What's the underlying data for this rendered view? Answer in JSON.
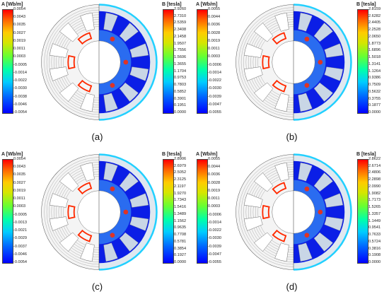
{
  "panels": [
    {
      "caption": "(a)",
      "a_title": "A [Wb/m]",
      "b_title": "B [tesla]",
      "a_ticks": [
        "0.0054",
        "0.0043",
        "0.0035",
        "0.0027",
        "0.0019",
        "0.0011",
        "0.0003",
        "-0.0005",
        "-0.0014",
        "-0.0022",
        "-0.0030",
        "-0.0038",
        "-0.0046",
        "-0.0054"
      ],
      "b_ticks": [
        "2.9260",
        "2.7310",
        "2.5359",
        "2.3408",
        "2.1458",
        "1.9507",
        "1.7556",
        "1.5606",
        "1.3655",
        "1.1704",
        "0.9753",
        "0.7803",
        "0.5852",
        "0.3901",
        "0.1951",
        "0.0000"
      ]
    },
    {
      "caption": "(b)",
      "a_title": "A [Wb/m]",
      "b_title": "B [tesla]",
      "a_ticks": [
        "0.0055",
        "0.0044",
        "0.0036",
        "0.0028",
        "0.0019",
        "0.0011",
        "0.0003",
        "-0.0006",
        "-0.0014",
        "-0.0022",
        "-0.0030",
        "-0.0039",
        "-0.0047",
        "-0.0055"
      ],
      "b_ticks": [
        "2.8159",
        "2.6282",
        "2.4405",
        "2.2528",
        "2.0650",
        "1.8773",
        "1.6896",
        "1.5018",
        "1.3141",
        "1.1264",
        "0.9386",
        "0.7509",
        "0.5632",
        "0.3755",
        "0.1877",
        "0.0000"
      ]
    },
    {
      "caption": "(c)",
      "a_title": "A [Wb/m]",
      "b_title": "B [tesla]",
      "a_ticks": [
        "0.0054",
        "0.0043",
        "0.0035",
        "0.0027",
        "0.0019",
        "0.0011",
        "0.0003",
        "-0.0005",
        "-0.0013",
        "-0.0021",
        "-0.0029",
        "-0.0037",
        "-0.0046",
        "-0.0054"
      ],
      "b_ticks": [
        "2.8906",
        "2.6979",
        "2.5052",
        "2.3125",
        "2.1197",
        "1.9270",
        "1.7343",
        "1.5416",
        "1.3489",
        "1.1562",
        "0.9635",
        "0.7708",
        "0.5781",
        "0.3854",
        "0.1927",
        "0.0000"
      ]
    },
    {
      "caption": "(d)",
      "a_title": "A [Wb/m]",
      "b_title": "B [tesla]",
      "a_ticks": [
        "0.0055",
        "0.0044",
        "0.0036",
        "0.0028",
        "0.0019",
        "0.0011",
        "0.0003",
        "-0.0006",
        "-0.0014",
        "-0.0022",
        "-0.0030",
        "-0.0039",
        "-0.0047",
        "-0.0055"
      ],
      "b_ticks": [
        "2.8622",
        "2.6714",
        "2.4806",
        "2.2898",
        "2.0990",
        "1.9082",
        "1.7173",
        "1.5265",
        "1.3357",
        "1.1449",
        "0.9541",
        "0.7633",
        "0.5724",
        "0.3816",
        "0.1908",
        "0.0000"
      ]
    }
  ],
  "colors": {
    "field_low": "#0b1ee6",
    "field_mid": "#2a6cf0",
    "field_high": "#ff2a00",
    "flux_line": "#7a7a7a"
  }
}
